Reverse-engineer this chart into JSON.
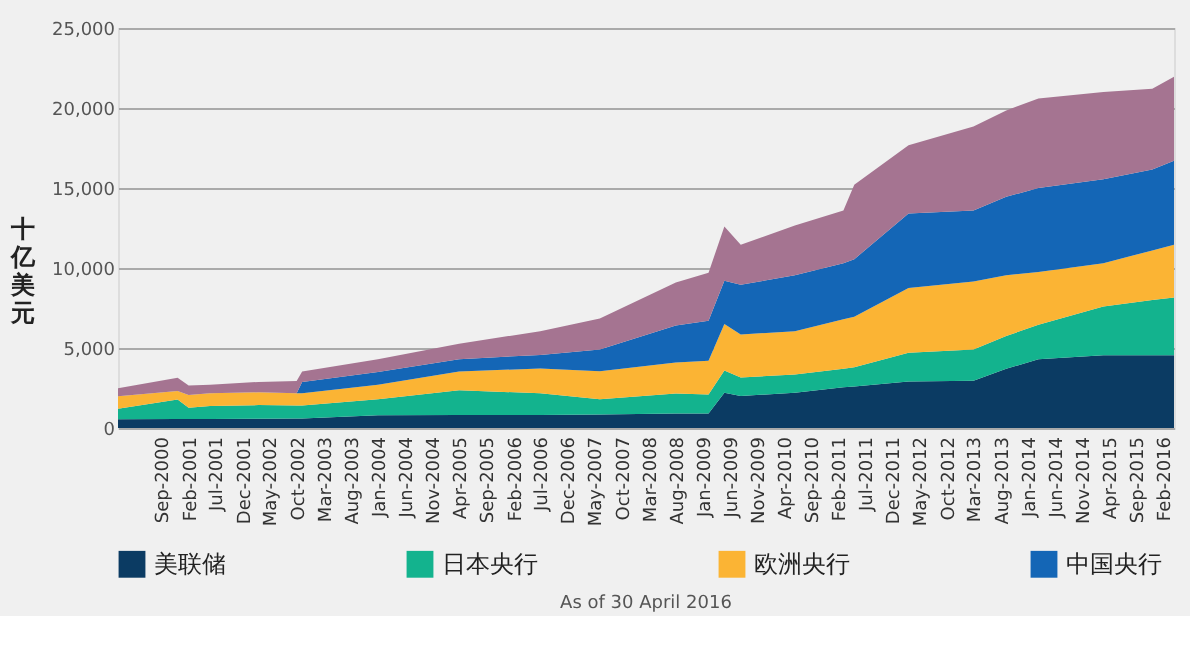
{
  "chart_data": {
    "type": "area",
    "stacked": true,
    "ylabel": "十亿美元",
    "annotations": [
      "As of 30 April 2016"
    ],
    "x": [
      "2000-01",
      "2000-12",
      "2001-02",
      "2001-06",
      "2002-03",
      "2002-10",
      "2002-11",
      "2004-01",
      "2005-04",
      "2006-07",
      "2007-06",
      "2008-08",
      "2009-02",
      "2009-05",
      "2009-08",
      "2010-06",
      "2011-03",
      "2011-05",
      "2012-03",
      "2013-03",
      "2013-09",
      "2014-03",
      "2015-03",
      "2015-12",
      "2016-04"
    ],
    "series": [
      {
        "name": "美联储",
        "color": "#0b3b63",
        "values": [
          550,
          560,
          560,
          570,
          580,
          600,
          600,
          800,
          810,
          820,
          850,
          900,
          900,
          2200,
          2000,
          2200,
          2550,
          2600,
          2900,
          2950,
          3700,
          4300,
          4550,
          4550,
          4550
        ]
      },
      {
        "name": "日本央行",
        "color": "#13b38e",
        "values": [
          650,
          1220,
          700,
          800,
          850,
          800,
          800,
          1000,
          1550,
          1350,
          950,
          1250,
          1200,
          1400,
          1150,
          1150,
          1150,
          1200,
          1800,
          1950,
          2050,
          2150,
          3050,
          3450,
          3600
        ]
      },
      {
        "name": "欧洲央行",
        "color": "#fbb434",
        "values": [
          780,
          540,
          800,
          800,
          800,
          770,
          770,
          900,
          1170,
          1550,
          1750,
          1950,
          2100,
          2900,
          2700,
          2700,
          3100,
          3150,
          4050,
          4250,
          3800,
          3300,
          2700,
          3100,
          3300
        ]
      },
      {
        "name": "中国央行",
        "color": "#1466b6",
        "values": [
          0,
          0,
          0,
          0,
          0,
          0,
          700,
          800,
          770,
          850,
          1350,
          2300,
          2500,
          2700,
          3100,
          3500,
          3500,
          3600,
          4650,
          4450,
          4900,
          5250,
          5250,
          5050,
          5250
        ]
      },
      {
        "color": "#a57491",
        "values": [
          500,
          820,
          600,
          530,
          650,
          770,
          660,
          800,
          970,
          1480,
          1940,
          2700,
          3000,
          3400,
          2500,
          3100,
          3300,
          4650,
          4270,
          5250,
          5400,
          5600,
          5450,
          5050,
          5250
        ]
      }
    ],
    "xlim": [
      "2000-01",
      "2016-04"
    ],
    "xticks": [
      {
        "value": "2000-09",
        "label": "Sep-2000"
      },
      {
        "value": "2001-02",
        "label": "Feb-2001"
      },
      {
        "value": "2001-07",
        "label": "Jul-2001"
      },
      {
        "value": "2001-12",
        "label": "Dec-2001"
      },
      {
        "value": "2002-05",
        "label": "May-2002"
      },
      {
        "value": "2002-10",
        "label": "Oct-2002"
      },
      {
        "value": "2003-03",
        "label": "Mar-2003"
      },
      {
        "value": "2003-08",
        "label": "Aug-2003"
      },
      {
        "value": "2004-01",
        "label": "Jan-2004"
      },
      {
        "value": "2004-06",
        "label": "Jun-2004"
      },
      {
        "value": "2004-11",
        "label": "Nov-2004"
      },
      {
        "value": "2005-04",
        "label": "Apr-2005"
      },
      {
        "value": "2005-09",
        "label": "Sep-2005"
      },
      {
        "value": "2006-02",
        "label": "Feb-2006"
      },
      {
        "value": "2006-07",
        "label": "Jul-2006"
      },
      {
        "value": "2006-12",
        "label": "Dec-2006"
      },
      {
        "value": "2007-05",
        "label": "May-2007"
      },
      {
        "value": "2007-10",
        "label": "Oct-2007"
      },
      {
        "value": "2008-03",
        "label": "Mar-2008"
      },
      {
        "value": "2008-08",
        "label": "Aug-2008"
      },
      {
        "value": "2009-01",
        "label": "Jan-2009"
      },
      {
        "value": "2009-06",
        "label": "Jun-2009"
      },
      {
        "value": "2009-11",
        "label": "Nov-2009"
      },
      {
        "value": "2010-04",
        "label": "Apr-2010"
      },
      {
        "value": "2010-09",
        "label": "Sep-2010"
      },
      {
        "value": "2011-02",
        "label": "Feb-2011"
      },
      {
        "value": "2011-07",
        "label": "Jul-2011"
      },
      {
        "value": "2011-12",
        "label": "Dec-2011"
      },
      {
        "value": "2012-05",
        "label": "May-2012"
      },
      {
        "value": "2012-10",
        "label": "Oct-2012"
      },
      {
        "value": "2013-03",
        "label": "Mar-2013"
      },
      {
        "value": "2013-08",
        "label": "Aug-2013"
      },
      {
        "value": "2014-01",
        "label": "Jan-2014"
      },
      {
        "value": "2014-06",
        "label": "Jun-2014"
      },
      {
        "value": "2014-11",
        "label": "Nov-2014"
      },
      {
        "value": "2015-04",
        "label": "Apr-2015"
      },
      {
        "value": "2015-09",
        "label": "Sep-2015"
      },
      {
        "value": "2016-02",
        "label": "Feb-2016"
      }
    ],
    "ylim": [
      0,
      25000
    ],
    "yticks": [
      {
        "value": 0,
        "label": "0"
      },
      {
        "value": 5000,
        "label": "5,000"
      },
      {
        "value": 10000,
        "label": "10,000"
      },
      {
        "value": 15000,
        "label": "15,000"
      },
      {
        "value": 20000,
        "label": "20,000"
      },
      {
        "value": 25000,
        "label": "25,000"
      }
    ],
    "grid": "y",
    "legend": "bottom"
  }
}
